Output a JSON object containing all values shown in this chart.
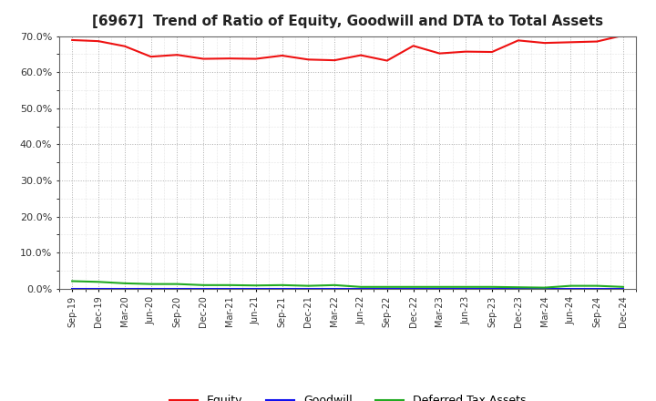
{
  "title": "[6967]  Trend of Ratio of Equity, Goodwill and DTA to Total Assets",
  "x_labels": [
    "Sep-19",
    "Dec-19",
    "Mar-20",
    "Jun-20",
    "Sep-20",
    "Dec-20",
    "Mar-21",
    "Jun-21",
    "Sep-21",
    "Dec-21",
    "Mar-22",
    "Jun-22",
    "Sep-22",
    "Dec-22",
    "Mar-23",
    "Jun-23",
    "Sep-23",
    "Dec-23",
    "Mar-24",
    "Jun-24",
    "Sep-24",
    "Dec-24"
  ],
  "equity": [
    68.9,
    68.6,
    67.2,
    64.3,
    64.8,
    63.7,
    63.8,
    63.7,
    64.6,
    63.5,
    63.3,
    64.7,
    63.2,
    67.3,
    65.2,
    65.7,
    65.6,
    68.8,
    68.1,
    68.3,
    68.5,
    70.2
  ],
  "goodwill": [
    0.0,
    0.0,
    0.0,
    0.0,
    0.0,
    0.0,
    0.0,
    0.0,
    0.0,
    0.0,
    0.0,
    0.0,
    0.0,
    0.0,
    0.0,
    0.0,
    0.0,
    0.0,
    0.0,
    0.0,
    0.0,
    0.0
  ],
  "dta": [
    2.1,
    1.9,
    1.5,
    1.3,
    1.3,
    1.0,
    1.0,
    0.9,
    1.0,
    0.8,
    1.0,
    0.5,
    0.5,
    0.5,
    0.5,
    0.5,
    0.5,
    0.4,
    0.3,
    0.8,
    0.8,
    0.5
  ],
  "equity_color": "#ee1111",
  "goodwill_color": "#1111ee",
  "dta_color": "#22aa22",
  "ylim": [
    0.0,
    70.0
  ],
  "yticks": [
    0.0,
    10.0,
    20.0,
    30.0,
    40.0,
    50.0,
    60.0,
    70.0
  ],
  "background_color": "#ffffff",
  "plot_bg_color": "#ffffff",
  "grid_color": "#999999",
  "title_fontsize": 11,
  "legend_labels": [
    "Equity",
    "Goodwill",
    "Deferred Tax Assets"
  ]
}
